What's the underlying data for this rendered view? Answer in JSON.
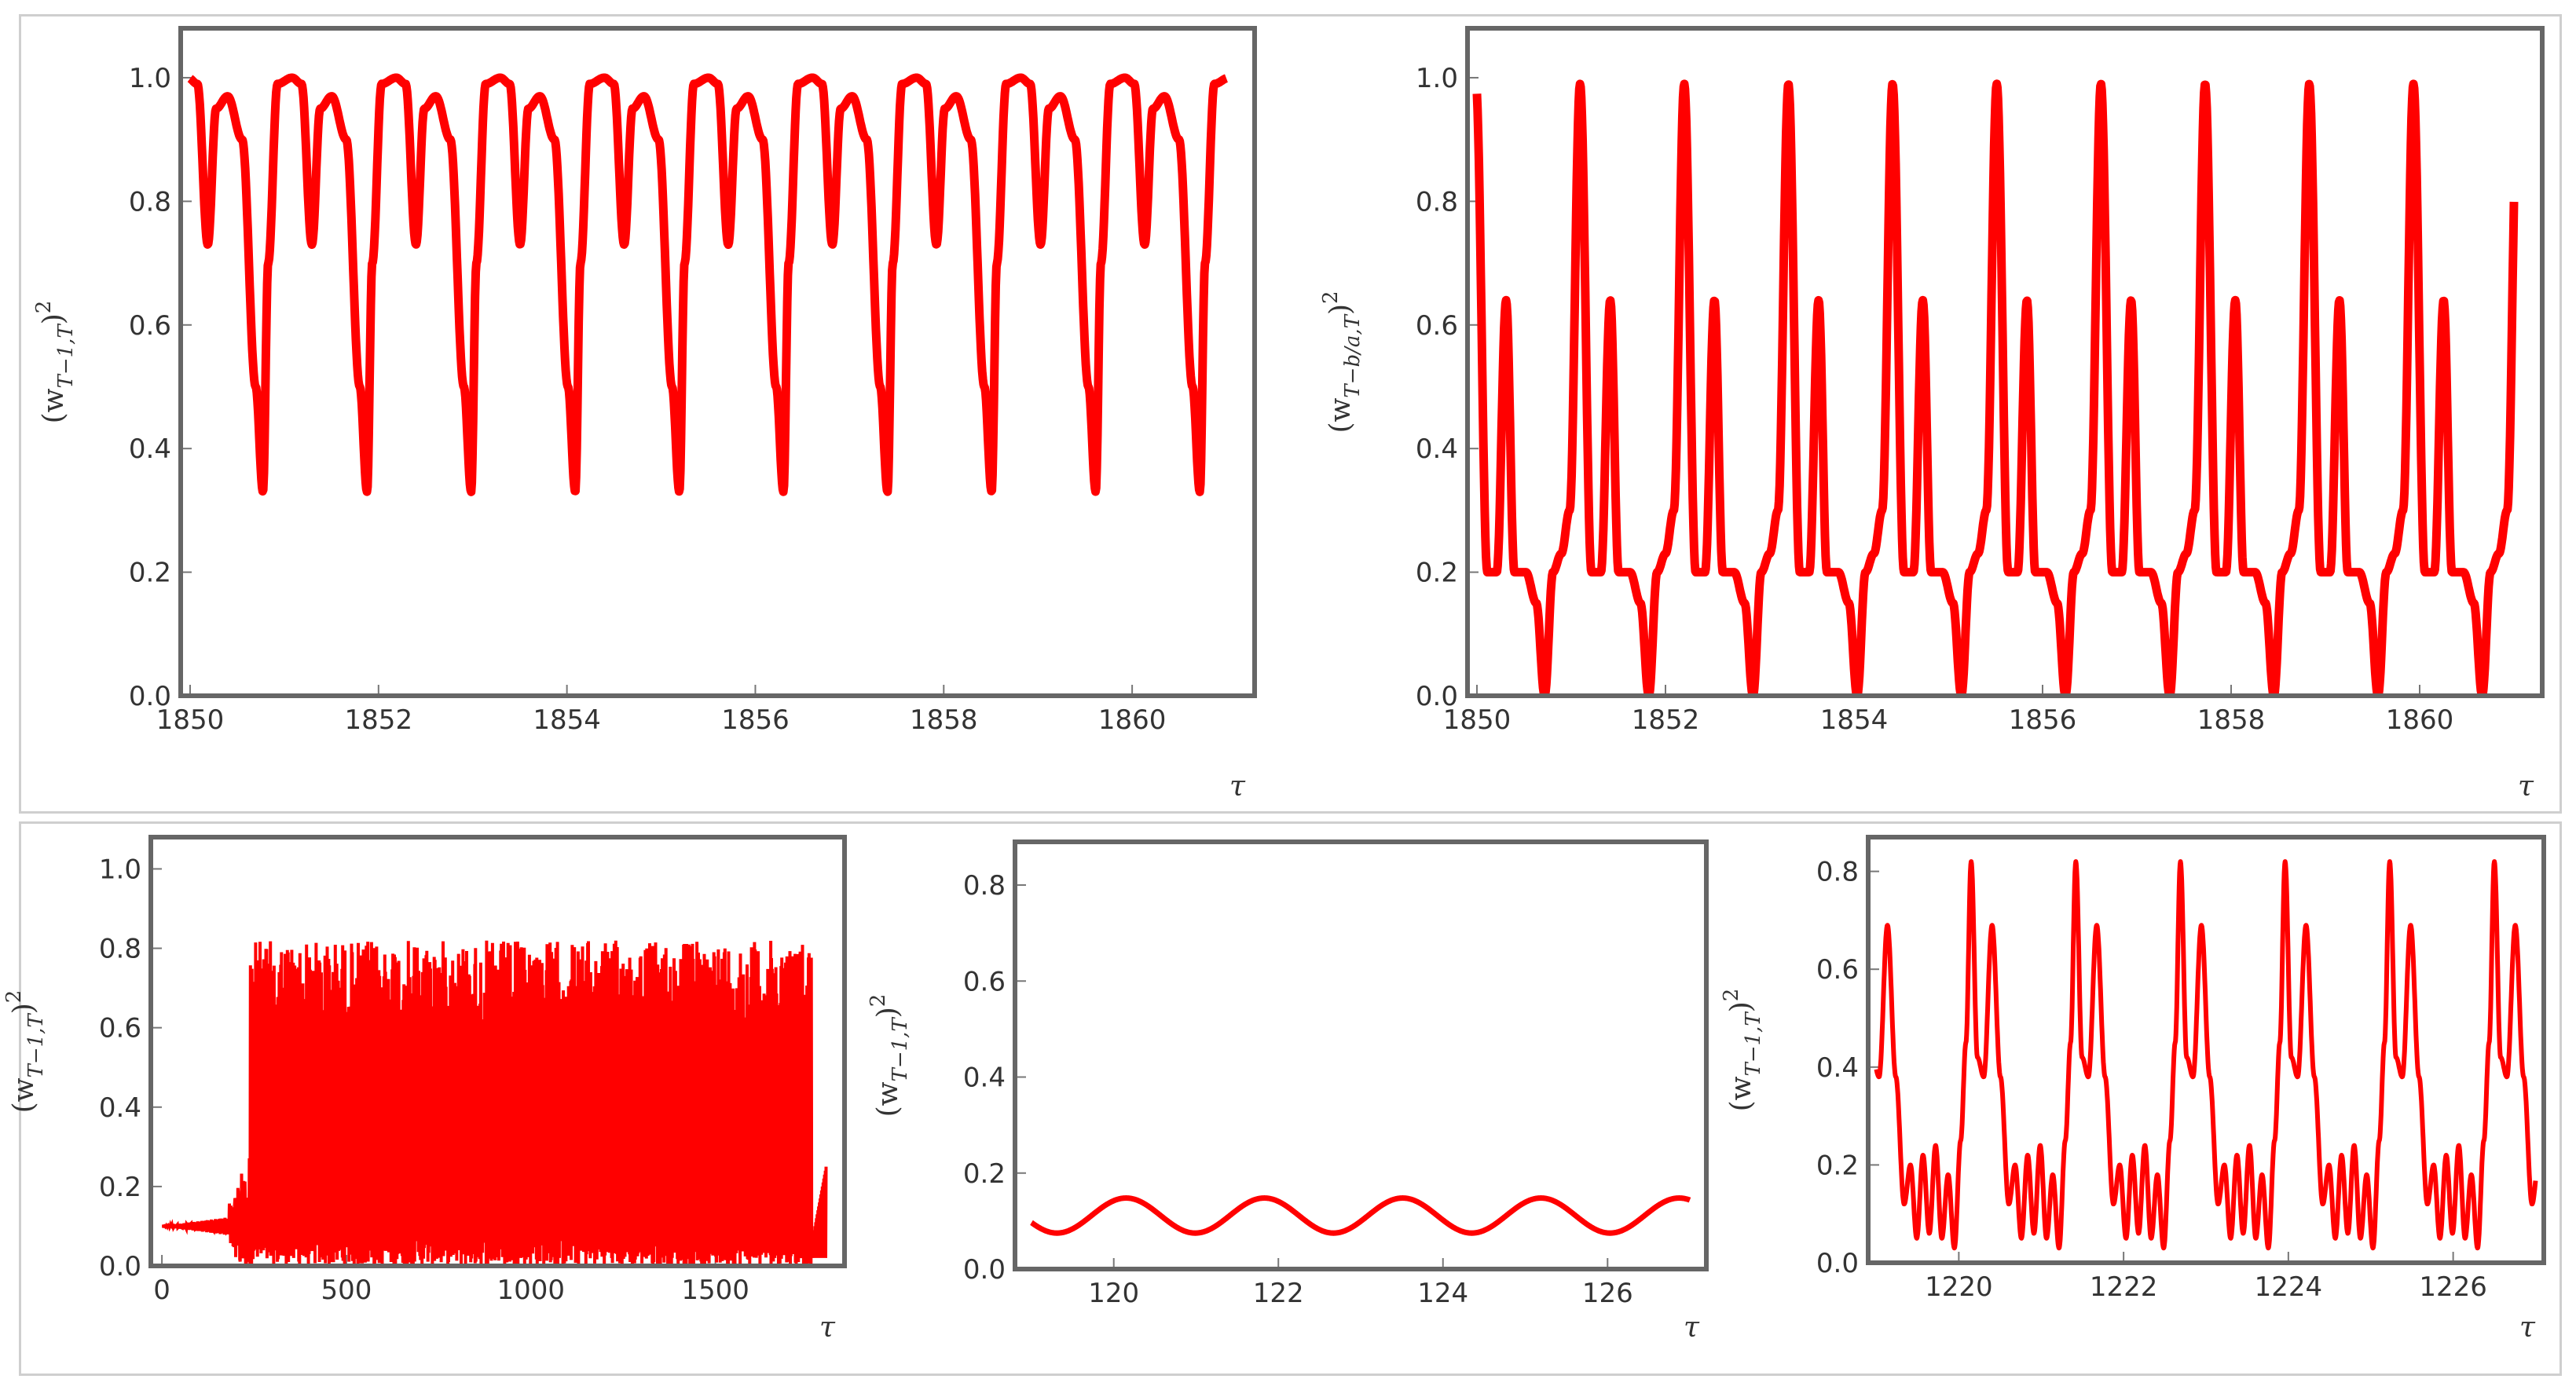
{
  "chart_data": [
    {
      "type": "line",
      "panel": "top-left",
      "xlabel": "τ",
      "ylabel": "(w_{T-1,T})^2",
      "ylabel_parts": {
        "open": "(w",
        "sub": "T−1,T",
        "close": ")",
        "sup": "2"
      },
      "xlim": [
        1849.9,
        1861.3
      ],
      "ylim": [
        0,
        1.08
      ],
      "xticks": [
        "1850",
        "1852",
        "1854",
        "1856",
        "1858",
        "1860"
      ],
      "xtick_values": [
        1850,
        1852,
        1854,
        1856,
        1858,
        1860
      ],
      "yticks": [
        "0.0",
        "0.2",
        "0.4",
        "0.6",
        "0.8",
        "1.0"
      ],
      "ytick_values": [
        0,
        0.2,
        0.4,
        0.6,
        0.8,
        1.0
      ],
      "series": [
        {
          "color": "#ff0000",
          "x_start": 1850,
          "x_end": 1861,
          "period": 1.105,
          "phase": 0.7,
          "deep_min": 0.33,
          "shallow_min": 0.72,
          "shallow_max": 0.97,
          "max": 1.0
        }
      ]
    },
    {
      "type": "line",
      "panel": "top-right",
      "xlabel": "τ",
      "ylabel": "(w_{T-b/a,T})^2",
      "ylabel_parts": {
        "open": "(w",
        "sub": "T−b/a,T",
        "close": ")",
        "sup": "2"
      },
      "xlim": [
        1849.9,
        1861.3
      ],
      "ylim": [
        0,
        1.08
      ],
      "xticks": [
        "1850",
        "1852",
        "1854",
        "1856",
        "1858",
        "1860"
      ],
      "xtick_values": [
        1850,
        1852,
        1854,
        1856,
        1858,
        1860
      ],
      "yticks": [
        "0.0",
        "0.2",
        "0.4",
        "0.6",
        "0.8",
        "1.0"
      ],
      "ytick_values": [
        0,
        0.2,
        0.4,
        0.6,
        0.8,
        1.0
      ],
      "series": [
        {
          "color": "#ff0000",
          "x_start": 1850,
          "x_end": 1861,
          "period": 1.105,
          "phase": 0.95,
          "big_peak": 0.99,
          "small_peak": 0.64,
          "trough": 0.2,
          "dip": 0.0
        }
      ]
    },
    {
      "type": "line",
      "panel": "bottom-left",
      "xlabel": "τ",
      "ylabel": "(w_{T-1,T})^2",
      "ylabel_parts": {
        "open": "(w",
        "sub": "T−1,T",
        "close": ")",
        "sup": "2"
      },
      "xlim": [
        -30,
        1850
      ],
      "ylim": [
        0,
        1.08
      ],
      "xticks": [
        "0",
        "500",
        "1000",
        "1500"
      ],
      "xtick_values": [
        0,
        500,
        1000,
        1500
      ],
      "yticks": [
        "0.0",
        "0.2",
        "0.4",
        "0.6",
        "0.8",
        "1.0"
      ],
      "ytick_values": [
        0,
        0.2,
        0.4,
        0.6,
        0.8,
        1.0
      ],
      "series": [
        {
          "color": "#ff0000",
          "x_start": 0,
          "x_end": 1800,
          "onset": 240,
          "pre_level": 0.1,
          "envelope_max": 0.82,
          "envelope_min": 0.0
        }
      ]
    },
    {
      "type": "line",
      "panel": "bottom-middle",
      "xlabel": "τ",
      "ylabel": "(w_{T-1,T})^2",
      "ylabel_parts": {
        "open": "(w",
        "sub": "T−1,T",
        "close": ")",
        "sup": "2"
      },
      "xlim": [
        118.8,
        127.2
      ],
      "ylim": [
        0,
        0.89
      ],
      "xticks": [
        "120",
        "122",
        "124",
        "126"
      ],
      "xtick_values": [
        120,
        122,
        124,
        126
      ],
      "yticks": [
        "0.0",
        "0.2",
        "0.4",
        "0.6",
        "0.8"
      ],
      "ytick_values": [
        0,
        0.2,
        0.4,
        0.6,
        0.8
      ],
      "series": [
        {
          "color": "#ff0000",
          "x_start": 119,
          "x_end": 127,
          "period": 1.68,
          "min": 0.075,
          "max": 0.148,
          "peak_at": 120.15
        }
      ]
    },
    {
      "type": "line",
      "panel": "bottom-right",
      "xlabel": "τ",
      "ylabel": "(w_{T-1,T})^2",
      "ylabel_parts": {
        "open": "(w",
        "sub": "T−1,T",
        "close": ")",
        "sup": "2"
      },
      "xlim": [
        1218.9,
        1227.1
      ],
      "ylim": [
        0,
        0.87
      ],
      "xticks": [
        "1220",
        "1222",
        "1224",
        "1226"
      ],
      "xtick_values": [
        1220,
        1222,
        1224,
        1226
      ],
      "yticks": [
        "0.0",
        "0.2",
        "0.4",
        "0.6",
        "0.8"
      ],
      "ytick_values": [
        0,
        0.2,
        0.4,
        0.6,
        0.8
      ],
      "series": [
        {
          "color": "#ff0000",
          "x_start": 1219,
          "x_end": 1227,
          "period": 1.27,
          "big_peak": 0.82,
          "small_peak": 0.69,
          "mid_trough": 0.38,
          "first_peak_at": 1220.15
        }
      ]
    }
  ]
}
